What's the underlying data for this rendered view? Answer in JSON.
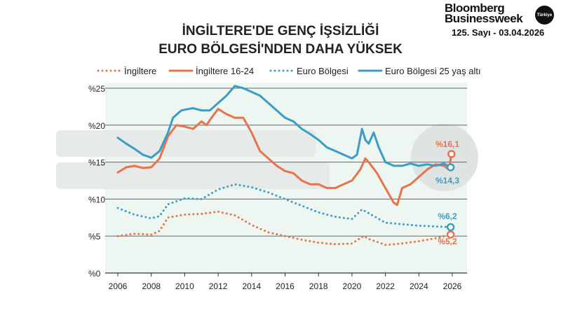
{
  "header": {
    "brand_line1": "Bloomberg",
    "brand_line2": "Businessweek",
    "brand_badge": "Türkiye",
    "issue": "125. Sayı - 03.04.2026"
  },
  "watermark": {
    "line1": "Bloomberg",
    "line2": "Businessweek",
    "badge": "Türkiye"
  },
  "chart_data": {
    "type": "line",
    "title": "İNGİLTERE'DE GENÇ İŞSİZLİĞİ",
    "subtitle": "EURO BÖLGESİ'NDEN DAHA YÜKSEK",
    "xlabel": "",
    "ylabel": "",
    "xlim": [
      2006,
      2026
    ],
    "ylim": [
      0,
      25
    ],
    "x_ticks": [
      "2006",
      "2008",
      "2010",
      "2012",
      "2014",
      "2016",
      "2018",
      "2020",
      "2022",
      "2024",
      "2026"
    ],
    "y_ticks": [
      "%0",
      "%5",
      "%10",
      "%15",
      "%20",
      "%25"
    ],
    "grid": true,
    "legend": "top",
    "colors": {
      "uk": "#e8734a",
      "euro": "#3a9cc9",
      "bg": "#eef6f2"
    },
    "series": [
      {
        "name": "İngiltere",
        "color": "#e8734a",
        "style": "dotted",
        "x": [
          2006,
          2007,
          2008,
          2008.5,
          2009,
          2010,
          2011,
          2012,
          2013,
          2014,
          2015,
          2016,
          2017,
          2018,
          2019,
          2020,
          2020.7,
          2021,
          2022,
          2023,
          2024,
          2025,
          2025.9
        ],
        "y": [
          5.0,
          5.3,
          5.2,
          5.7,
          7.5,
          7.9,
          8.0,
          8.3,
          7.8,
          6.5,
          5.5,
          5.0,
          4.5,
          4.1,
          3.9,
          4.0,
          5.0,
          4.6,
          3.8,
          4.0,
          4.3,
          4.7,
          5.2
        ],
        "end_label": "%5,2"
      },
      {
        "name": "İngiltere 16-24",
        "color": "#e8734a",
        "style": "solid",
        "x": [
          2006,
          2006.5,
          2007,
          2007.5,
          2008,
          2008.5,
          2009,
          2009.5,
          2010,
          2010.5,
          2011,
          2011.3,
          2011.6,
          2012,
          2012.5,
          2013,
          2013.5,
          2014,
          2014.5,
          2015,
          2015.5,
          2016,
          2016.5,
          2017,
          2017.5,
          2018,
          2018.5,
          2019,
          2019.5,
          2020,
          2020.5,
          2020.8,
          2021,
          2021.5,
          2022,
          2022.5,
          2022.7,
          2023,
          2023.5,
          2024,
          2024.5,
          2025,
          2025.5,
          2025.8,
          2025.95
        ],
        "y": [
          13.6,
          14.3,
          14.5,
          14.2,
          14.3,
          15.5,
          18.5,
          20,
          19.8,
          19.5,
          20.5,
          20,
          21,
          22.2,
          21.5,
          21,
          21,
          19,
          16.5,
          15.5,
          14.5,
          13.8,
          13.5,
          12.5,
          12.0,
          12,
          11.5,
          11.5,
          12,
          12.5,
          14,
          15.5,
          15,
          13.5,
          11.5,
          9.5,
          9.2,
          11.5,
          12,
          13,
          14,
          14.7,
          14.5,
          14,
          16.1
        ],
        "end_label": "%16,1"
      },
      {
        "name": "Euro Bölgesi",
        "color": "#3a9cc9",
        "style": "dotted",
        "x": [
          2006,
          2007,
          2008,
          2008.5,
          2009,
          2010,
          2011,
          2012,
          2013,
          2014,
          2015,
          2016,
          2017,
          2018,
          2019,
          2020,
          2020.6,
          2021,
          2022,
          2023,
          2024,
          2025,
          2025.9
        ],
        "y": [
          8.8,
          7.9,
          7.4,
          7.7,
          9.3,
          10.1,
          10.0,
          11.3,
          12.0,
          11.6,
          10.9,
          10.0,
          9.1,
          8.2,
          7.6,
          7.3,
          8.6,
          8.1,
          6.8,
          6.6,
          6.4,
          6.3,
          6.2
        ],
        "end_label": "%6,2"
      },
      {
        "name": "Euro Bölgesi 25 yaş altı",
        "color": "#3a9cc9",
        "style": "solid",
        "x": [
          2006,
          2006.5,
          2007,
          2007.5,
          2008,
          2008.5,
          2009,
          2009.3,
          2009.8,
          2010.5,
          2011,
          2011.5,
          2012,
          2012.5,
          2013,
          2013.5,
          2014,
          2014.5,
          2015,
          2015.5,
          2016,
          2016.5,
          2017,
          2017.5,
          2018,
          2018.5,
          2019,
          2019.5,
          2020,
          2020.3,
          2020.6,
          2020.8,
          2021,
          2021.3,
          2021.6,
          2022,
          2022.5,
          2023,
          2023.5,
          2024,
          2024.5,
          2025,
          2025.5,
          2025.9
        ],
        "y": [
          18.3,
          17.5,
          16.8,
          16.0,
          15.6,
          16.5,
          19,
          21,
          22,
          22.3,
          22,
          22,
          23,
          24,
          25.3,
          25,
          24.5,
          24,
          23,
          22,
          21,
          20.5,
          19.5,
          18.8,
          18,
          17,
          16.5,
          16,
          15.5,
          16,
          19.5,
          18,
          17.5,
          19,
          17,
          15,
          14.5,
          14.5,
          14.8,
          14.5,
          14.7,
          14.5,
          14.8,
          14.3
        ],
        "end_label": "%14,3"
      }
    ]
  }
}
